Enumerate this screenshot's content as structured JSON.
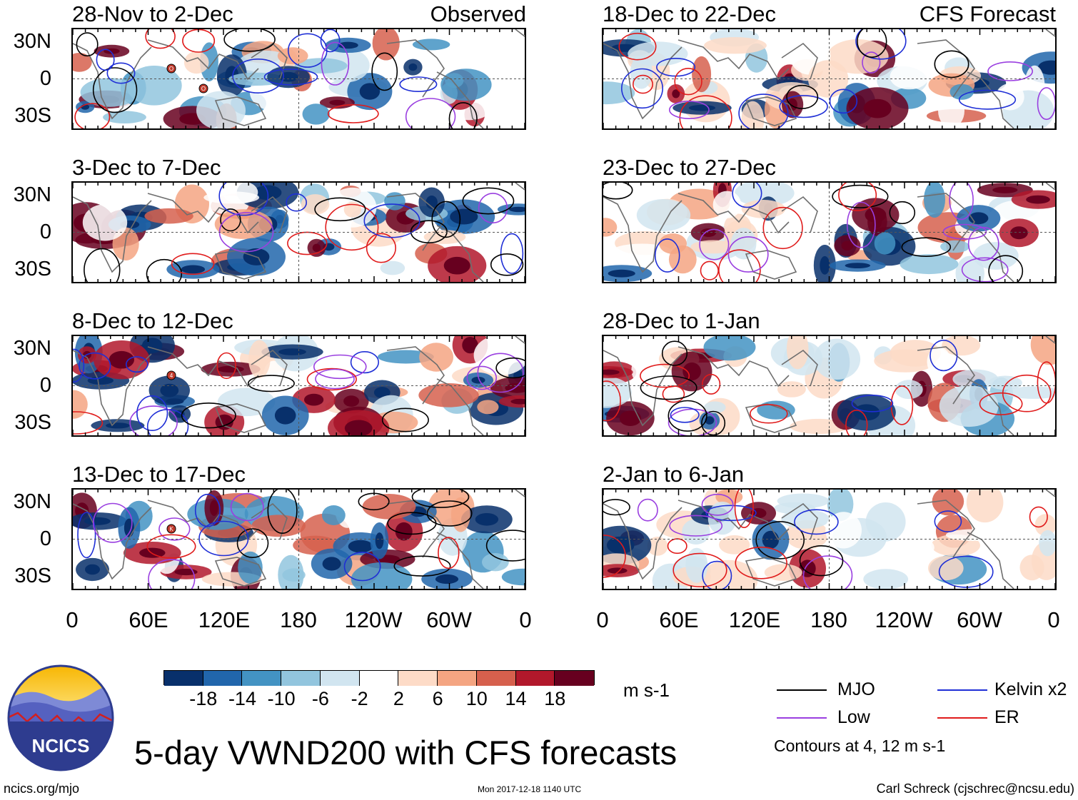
{
  "colors": {
    "mjo": "#000000",
    "kelvin": "#1f2fd6",
    "low": "#9a3fe0",
    "er": "#e01b1b",
    "coast": "#6e6e6e"
  },
  "headers": {
    "observed": "Observed",
    "forecast": "CFS Forecast"
  },
  "panels_left": [
    {
      "title": "28-Nov to 2-Dec"
    },
    {
      "title": "3-Dec to 7-Dec"
    },
    {
      "title": "8-Dec to 12-Dec"
    },
    {
      "title": "13-Dec to 17-Dec"
    }
  ],
  "panels_right": [
    {
      "title": "18-Dec to 22-Dec"
    },
    {
      "title": "23-Dec to 27-Dec"
    },
    {
      "title": "28-Dec to 1-Jan"
    },
    {
      "title": "2-Jan to 6-Jan"
    }
  ],
  "lat_labels": [
    "30N",
    "0",
    "30S"
  ],
  "lon_labels": [
    "0",
    "60E",
    "120E",
    "180",
    "120W",
    "60W",
    "0"
  ],
  "colorbar": {
    "colors": [
      "#08306b",
      "#2166ac",
      "#4393c3",
      "#92c5de",
      "#d1e5f0",
      "#ffffff",
      "#fddbc7",
      "#f4a582",
      "#d6604d",
      "#b2182b",
      "#67001f"
    ],
    "labels": [
      "-18",
      "-14",
      "-10",
      "-6",
      "-2",
      "2",
      "6",
      "10",
      "14",
      "18"
    ],
    "units": "m s-1"
  },
  "legend": {
    "mjo": "MJO",
    "kelvin": "Kelvin x2",
    "low": "Low",
    "er": "ER",
    "contours": "Contours at 4, 12 m s-1"
  },
  "logo": {
    "text": "NCICS"
  },
  "main_title": "5-day VWND200 with CFS forecasts",
  "footer": {
    "url": "ncics.org/mjo",
    "timestamp": "Mon 2017-12-18 1140 UTC",
    "author": "Carl Schreck (cjschrec@ncsu.edu)"
  },
  "tc_markers": [
    {
      "panel": 0,
      "labels": [
        "O",
        "O"
      ]
    },
    {
      "panel": 2,
      "labels": [
        "4"
      ]
    },
    {
      "panel": 3,
      "labels": [
        "K"
      ]
    }
  ]
}
